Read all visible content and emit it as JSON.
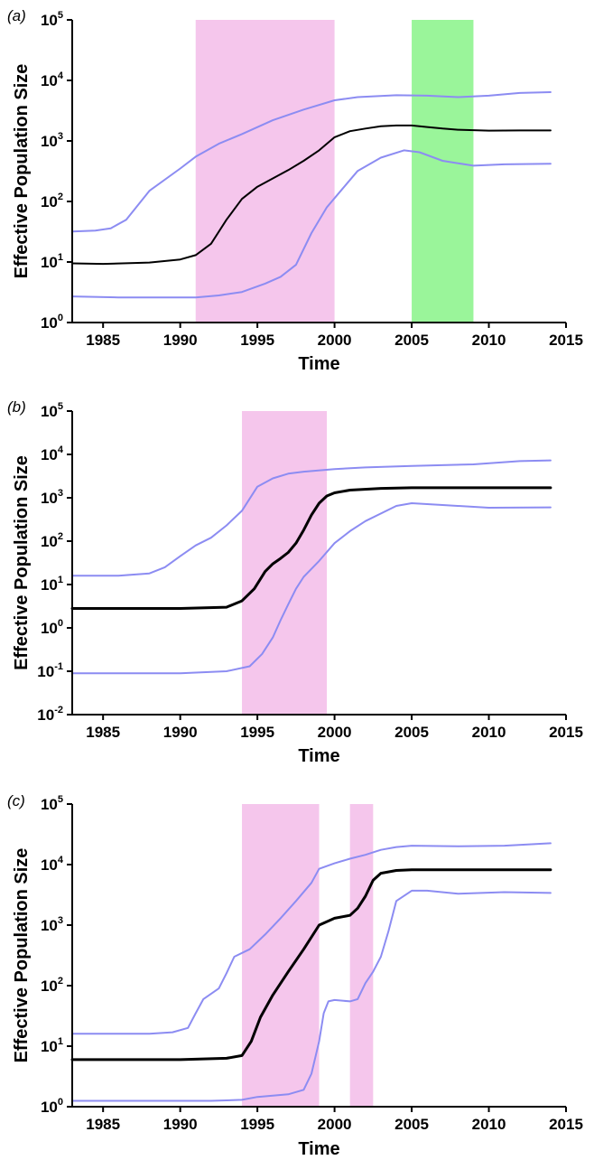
{
  "chart_data": [
    {
      "type": "line",
      "panel_label": "(a)",
      "xlabel": "Time",
      "ylabel": "Effective Population Size",
      "xlim": [
        1983,
        2015
      ],
      "xticks": [
        1985,
        1990,
        1995,
        2000,
        2005,
        2010,
        2015
      ],
      "ylim": [
        1,
        100000
      ],
      "yscale": "log",
      "yticks": [
        {
          "value": 1,
          "base": "10",
          "exp": "0"
        },
        {
          "value": 10,
          "base": "10",
          "exp": "1"
        },
        {
          "value": 100,
          "base": "10",
          "exp": "2"
        },
        {
          "value": 1000,
          "base": "10",
          "exp": "3"
        },
        {
          "value": 10000,
          "base": "10",
          "exp": "4"
        },
        {
          "value": 100000,
          "base": "10",
          "exp": "5"
        }
      ],
      "shaded_regions": [
        {
          "x0": 1991.0,
          "x1": 2000.0,
          "color": "#f5c6ec"
        },
        {
          "x0": 2005.0,
          "x1": 2009.0,
          "color": "#9af59a"
        }
      ],
      "series": [
        {
          "role": "upper",
          "color": "#8c8cf2",
          "width": 2,
          "x": [
            1983,
            1984.5,
            1985.5,
            1986.5,
            1988,
            1990,
            1991,
            1992.5,
            1994,
            1996,
            1998,
            2000,
            2001.5,
            2004,
            2006,
            2008,
            2010,
            2012,
            2014
          ],
          "y": [
            32,
            33,
            36,
            50,
            150,
            350,
            550,
            900,
            1300,
            2200,
            3300,
            4700,
            5300,
            5700,
            5600,
            5300,
            5600,
            6200,
            6400
          ]
        },
        {
          "role": "median",
          "color": "#000000",
          "width": 2,
          "x": [
            1983,
            1985,
            1988,
            1990,
            1991,
            1992,
            1993,
            1994,
            1995,
            1996,
            1997,
            1998,
            1999,
            2000,
            2001,
            2002,
            2003,
            2004,
            2005,
            2006,
            2007,
            2008,
            2010,
            2012,
            2014
          ],
          "y": [
            9.5,
            9.3,
            9.8,
            11,
            13,
            20,
            50,
            110,
            175,
            240,
            330,
            470,
            700,
            1150,
            1450,
            1600,
            1750,
            1800,
            1800,
            1700,
            1600,
            1530,
            1480,
            1490,
            1490
          ]
        },
        {
          "role": "lower",
          "color": "#8c8cf2",
          "width": 2,
          "x": [
            1983,
            1986,
            1991,
            1992.5,
            1994,
            1995.5,
            1996.5,
            1997.5,
            1998.5,
            1999.5,
            2000.5,
            2001.5,
            2003,
            2004.5,
            2005.5,
            2007,
            2009,
            2011,
            2014
          ],
          "y": [
            2.7,
            2.6,
            2.6,
            2.8,
            3.2,
            4.4,
            5.7,
            9,
            30,
            80,
            160,
            320,
            530,
            700,
            650,
            470,
            390,
            410,
            420
          ]
        }
      ]
    },
    {
      "type": "line",
      "panel_label": "(b)",
      "xlabel": "Time",
      "ylabel": "Effective Population Size",
      "xlim": [
        1983,
        2015
      ],
      "xticks": [
        1985,
        1990,
        1995,
        2000,
        2005,
        2010,
        2015
      ],
      "ylim": [
        0.01,
        100000
      ],
      "yscale": "log",
      "yticks": [
        {
          "value": 0.01,
          "base": "10",
          "exp": "-2"
        },
        {
          "value": 0.1,
          "base": "10",
          "exp": "-1"
        },
        {
          "value": 1,
          "base": "10",
          "exp": "0"
        },
        {
          "value": 10,
          "base": "10",
          "exp": "1"
        },
        {
          "value": 100,
          "base": "10",
          "exp": "2"
        },
        {
          "value": 1000,
          "base": "10",
          "exp": "3"
        },
        {
          "value": 10000,
          "base": "10",
          "exp": "4"
        },
        {
          "value": 100000,
          "base": "10",
          "exp": "5"
        }
      ],
      "shaded_regions": [
        {
          "x0": 1994.0,
          "x1": 1999.5,
          "color": "#f5c6ec"
        }
      ],
      "series": [
        {
          "role": "upper",
          "color": "#8c8cf2",
          "width": 2,
          "x": [
            1983,
            1986,
            1988,
            1989,
            1990,
            1991,
            1992,
            1993,
            1994,
            1995,
            1996,
            1997,
            1998,
            2000,
            2002,
            2005,
            2009,
            2012,
            2014
          ],
          "y": [
            16,
            16,
            18,
            25,
            45,
            80,
            120,
            230,
            500,
            1800,
            2800,
            3600,
            4000,
            4600,
            5000,
            5400,
            5900,
            7000,
            7300
          ]
        },
        {
          "role": "median",
          "color": "#000000",
          "width": 3,
          "x": [
            1983,
            1990,
            1993,
            1994,
            1994.8,
            1995.5,
            1996,
            1996.5,
            1997,
            1997.5,
            1998,
            1998.5,
            1999,
            1999.5,
            2000,
            2001,
            2003,
            2005,
            2014
          ],
          "y": [
            2.8,
            2.8,
            3.0,
            4.2,
            8,
            20,
            30,
            40,
            55,
            90,
            180,
            400,
            750,
            1100,
            1300,
            1500,
            1650,
            1700,
            1700
          ]
        },
        {
          "role": "lower",
          "color": "#8c8cf2",
          "width": 2,
          "x": [
            1983,
            1990,
            1993,
            1994.5,
            1995.3,
            1996,
            1996.5,
            1997,
            1997.5,
            1998,
            1999,
            2000,
            2001,
            2002,
            2004,
            2005,
            2007,
            2010,
            2014
          ],
          "y": [
            0.09,
            0.09,
            0.1,
            0.13,
            0.25,
            0.6,
            1.5,
            3.5,
            8,
            15,
            35,
            90,
            170,
            290,
            650,
            750,
            680,
            590,
            600
          ]
        }
      ]
    },
    {
      "type": "line",
      "panel_label": "(c)",
      "xlabel": "Time",
      "ylabel": "Effective Population Size",
      "xlim": [
        1983,
        2015
      ],
      "xticks": [
        1985,
        1990,
        1995,
        2000,
        2005,
        2010,
        2015
      ],
      "ylim": [
        1,
        100000
      ],
      "yscale": "log",
      "yticks": [
        {
          "value": 1,
          "base": "10",
          "exp": "0"
        },
        {
          "value": 10,
          "base": "10",
          "exp": "1"
        },
        {
          "value": 100,
          "base": "10",
          "exp": "2"
        },
        {
          "value": 1000,
          "base": "10",
          "exp": "3"
        },
        {
          "value": 10000,
          "base": "10",
          "exp": "4"
        },
        {
          "value": 100000,
          "base": "10",
          "exp": "5"
        }
      ],
      "shaded_regions": [
        {
          "x0": 1994.0,
          "x1": 1999.0,
          "color": "#f5c6ec"
        },
        {
          "x0": 2001.0,
          "x1": 2002.5,
          "color": "#f5c6ec"
        }
      ],
      "series": [
        {
          "role": "upper",
          "color": "#8c8cf2",
          "width": 2,
          "x": [
            1983,
            1988,
            1989.5,
            1990.5,
            1991,
            1991.5,
            1992.5,
            1993,
            1993.5,
            1994.5,
            1995.5,
            1996.5,
            1997.5,
            1998.5,
            1999,
            2000,
            2001,
            2002,
            2003,
            2004,
            2005,
            2008,
            2011,
            2014
          ],
          "y": [
            16,
            16,
            17,
            20,
            35,
            60,
            90,
            160,
            300,
            400,
            700,
            1300,
            2500,
            5000,
            8500,
            10500,
            12500,
            14500,
            17500,
            19500,
            20500,
            20000,
            20500,
            22500
          ]
        },
        {
          "role": "median",
          "color": "#000000",
          "width": 3,
          "x": [
            1983,
            1990,
            1993,
            1994,
            1994.6,
            1995.2,
            1996,
            1997,
            1998,
            1999,
            2000,
            2001,
            2001.5,
            2002,
            2002.5,
            2003,
            2004,
            2005,
            2014
          ],
          "y": [
            6,
            6,
            6.3,
            7,
            12,
            30,
            70,
            170,
            400,
            1000,
            1300,
            1450,
            1900,
            3000,
            5500,
            7200,
            8000,
            8200,
            8200
          ]
        },
        {
          "role": "lower",
          "color": "#8c8cf2",
          "width": 2,
          "x": [
            1983,
            1992,
            1994,
            1995,
            1997,
            1998,
            1998.5,
            1999,
            1999.3,
            1999.6,
            2000,
            2001,
            2001.5,
            2002,
            2002.5,
            2003,
            2003.5,
            2004,
            2005,
            2006,
            2008,
            2011,
            2014
          ],
          "y": [
            1.25,
            1.25,
            1.3,
            1.45,
            1.6,
            1.9,
            3.5,
            12,
            35,
            55,
            58,
            55,
            60,
            110,
            170,
            300,
            800,
            2500,
            3700,
            3700,
            3300,
            3500,
            3400
          ]
        }
      ]
    }
  ]
}
